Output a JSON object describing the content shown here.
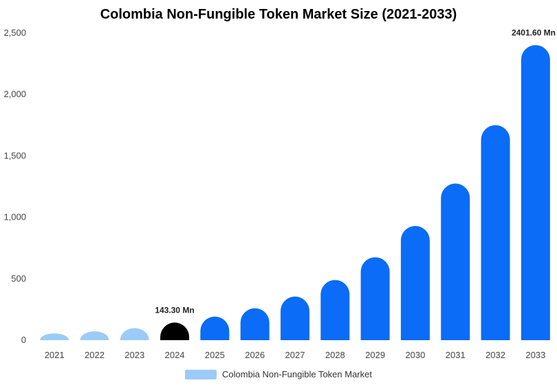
{
  "chart_data": {
    "type": "bar",
    "title": "Colombia Non-Fungible Token Market Size (2021-2033)",
    "xlabel": "",
    "ylabel": "",
    "categories": [
      "2021",
      "2022",
      "2023",
      "2024",
      "2025",
      "2026",
      "2027",
      "2028",
      "2029",
      "2030",
      "2031",
      "2032",
      "2033"
    ],
    "series": [
      {
        "name": "Colombia Non-Fungible Token Market",
        "values": [
          55,
          72,
          98,
          143.3,
          192,
          260,
          355,
          490,
          675,
          930,
          1275,
          1750,
          2401.6
        ]
      }
    ],
    "ylim": [
      0,
      2500
    ],
    "yticks": [
      "0",
      "500",
      "1,000",
      "1,500",
      "2,000",
      "2,500"
    ],
    "ytick_values": [
      0,
      500,
      1000,
      1500,
      2000,
      2500
    ],
    "data_labels": [
      {
        "index": 3,
        "text": "143.30 Mn"
      },
      {
        "index": 12,
        "text": "2401.60 Mn"
      }
    ],
    "colors": {
      "historic": "#9ccbf7",
      "current": "#000000",
      "forecast": "#0a6cf7"
    },
    "bar_color_groups": [
      "historic",
      "historic",
      "historic",
      "current",
      "forecast",
      "forecast",
      "forecast",
      "forecast",
      "forecast",
      "forecast",
      "forecast",
      "forecast",
      "forecast"
    ],
    "grid": false,
    "legend_position": "bottom"
  },
  "legend": {
    "label": "Colombia Non-Fungible Token Market",
    "color": "#9ccbf7"
  }
}
